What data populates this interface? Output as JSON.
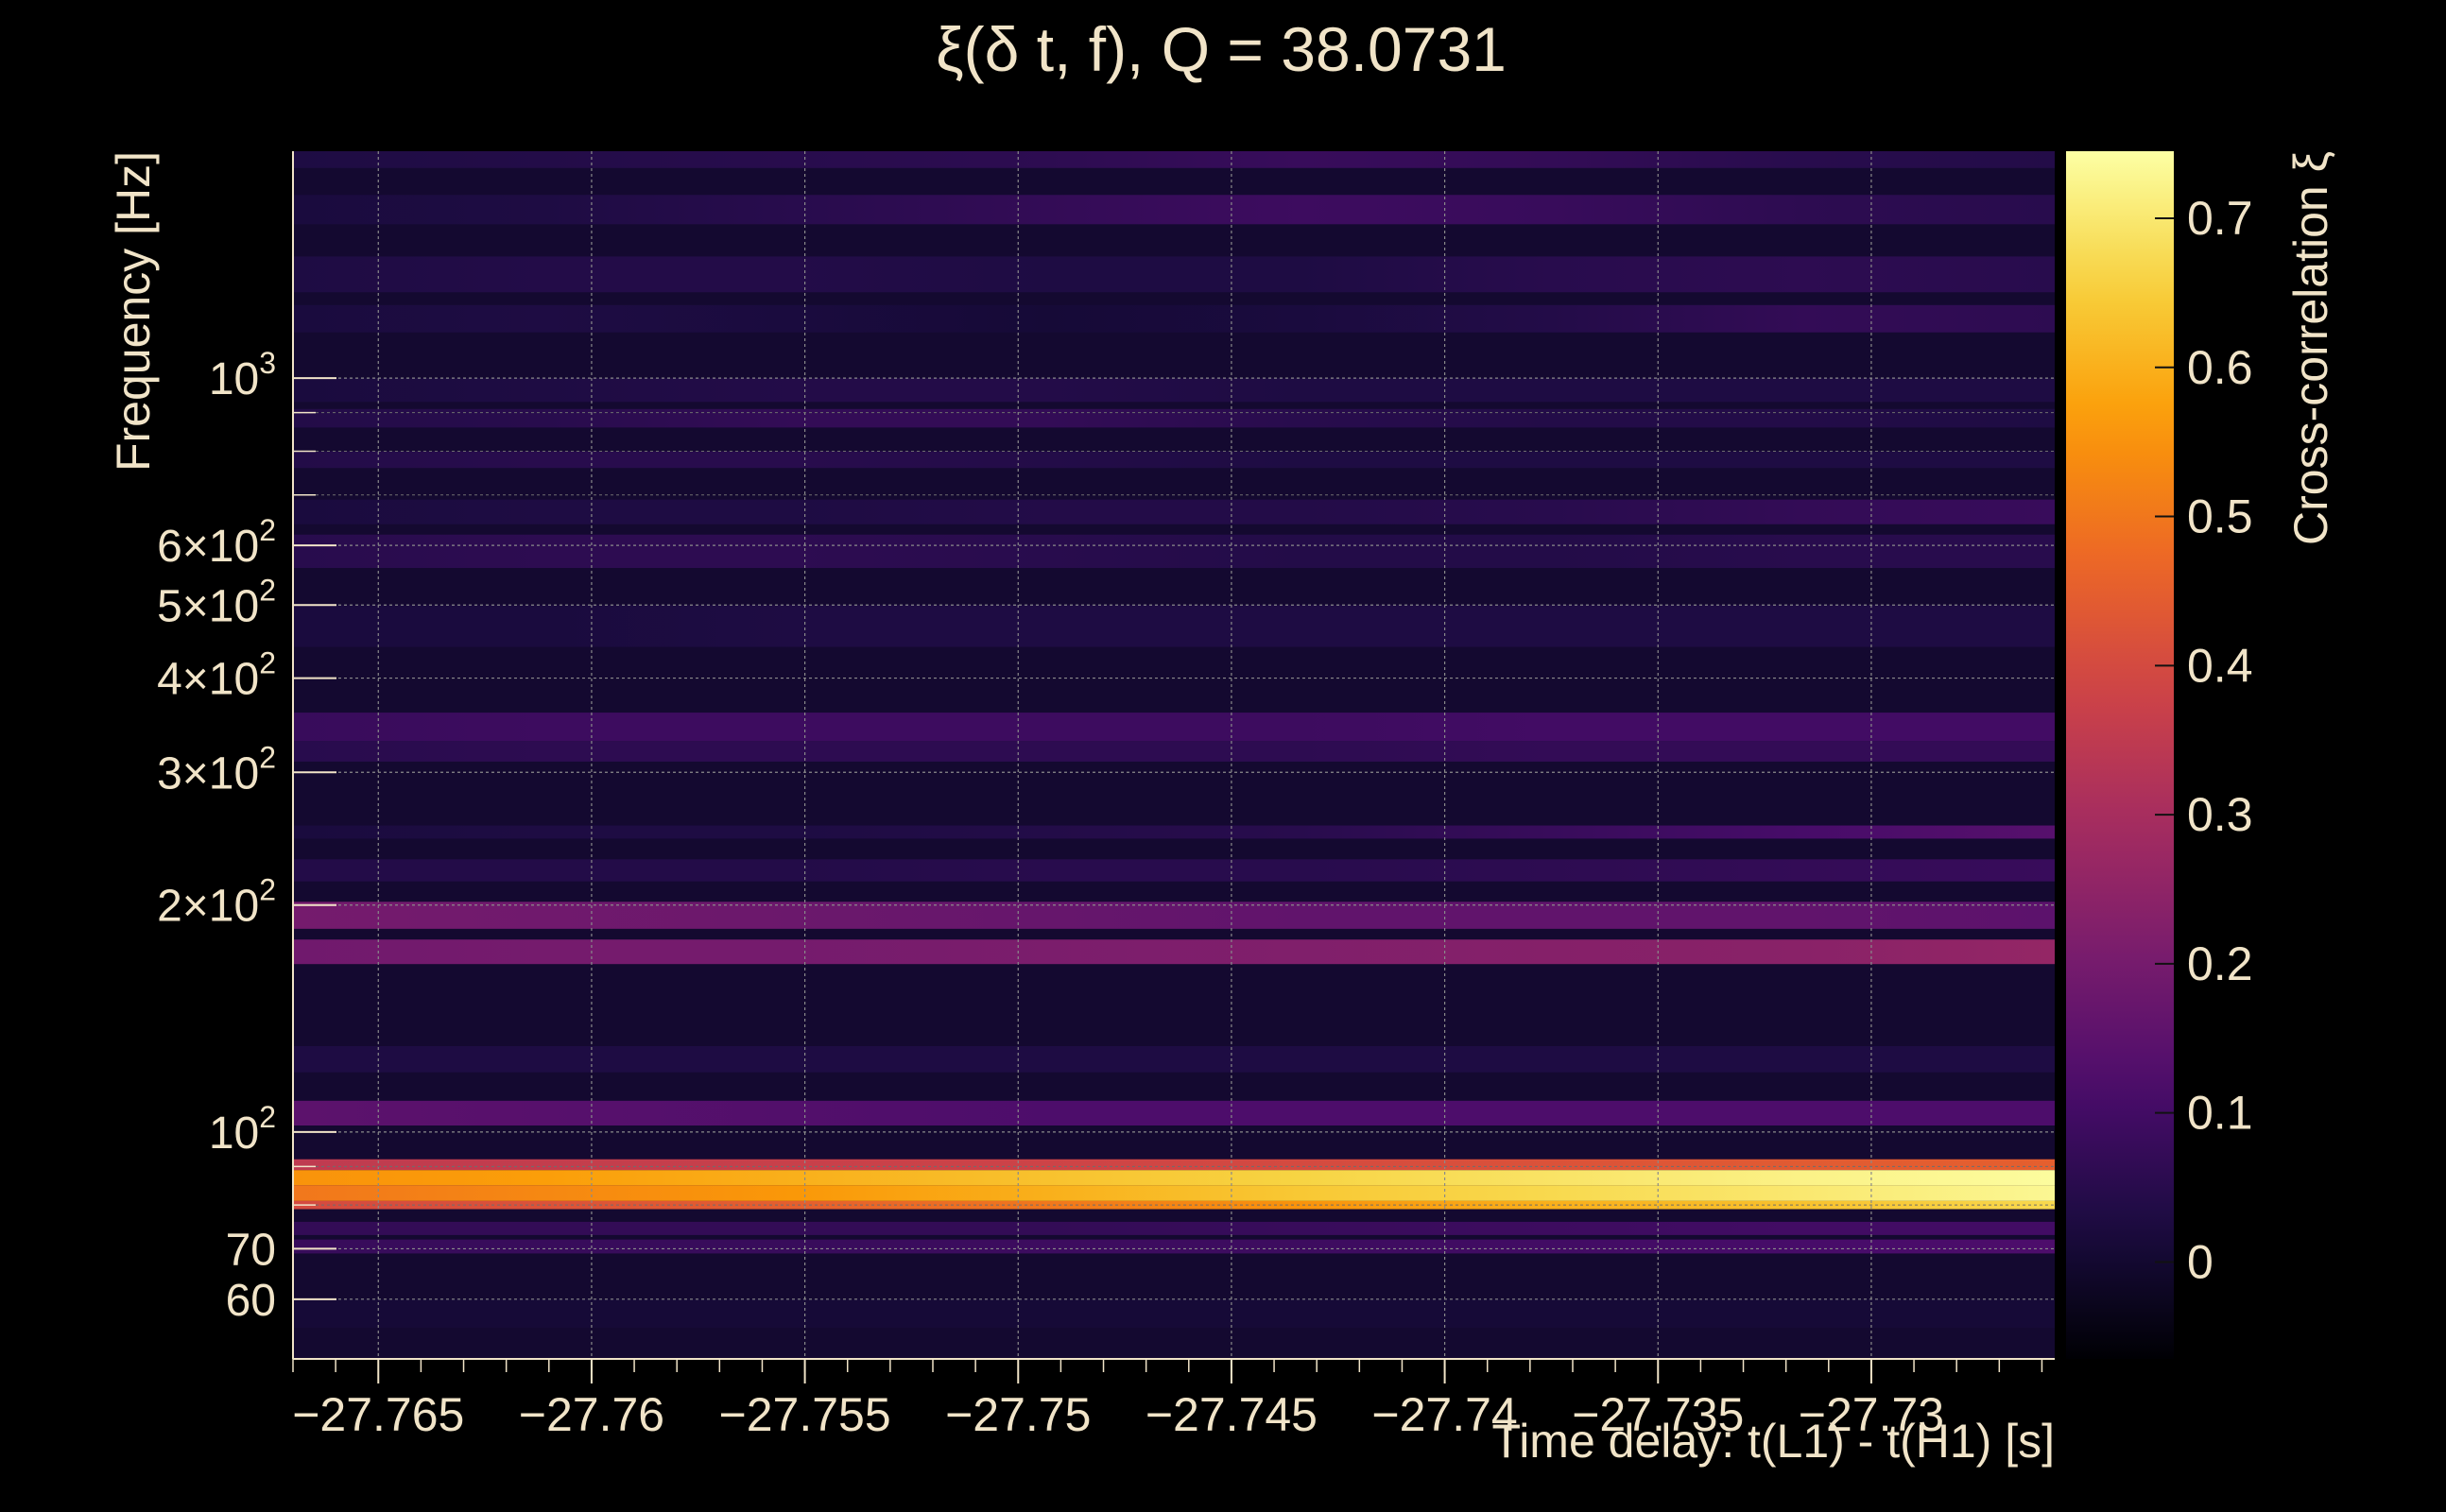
{
  "chart_data": {
    "type": "heatmap",
    "title": "ξ(δ t, f), Q = 38.0731",
    "xlabel": "Time delay: t(L1) - t(H1) [s]",
    "ylabel": "Frequency [Hz]",
    "colorbar_label": "Cross-correlation ξ",
    "x_scale": "linear",
    "y_scale": "log",
    "xlim": [
      -27.767,
      -27.7257
    ],
    "ylim": [
      50,
      2000
    ],
    "grid": true,
    "x_ticks": [
      {
        "v": -27.765,
        "label": "−27.765"
      },
      {
        "v": -27.76,
        "label": "−27.76"
      },
      {
        "v": -27.755,
        "label": "−27.755"
      },
      {
        "v": -27.75,
        "label": "−27.75"
      },
      {
        "v": -27.745,
        "label": "−27.745"
      },
      {
        "v": -27.74,
        "label": "−27.74"
      },
      {
        "v": -27.735,
        "label": "−27.735"
      },
      {
        "v": -27.73,
        "label": "−27.73"
      }
    ],
    "y_ticks": [
      {
        "v": 60,
        "label": "60"
      },
      {
        "v": 70,
        "label": "70"
      },
      {
        "v": 100,
        "base": "10",
        "exp": "2"
      },
      {
        "v": 200,
        "base": "2×10",
        "exp": "2"
      },
      {
        "v": 300,
        "base": "3×10",
        "exp": "2"
      },
      {
        "v": 400,
        "base": "4×10",
        "exp": "2"
      },
      {
        "v": 500,
        "base": "5×10",
        "exp": "2"
      },
      {
        "v": 600,
        "base": "6×10",
        "exp": "2"
      },
      {
        "v": 1000,
        "base": "10",
        "exp": "3"
      }
    ],
    "y_minor_grid": [
      80,
      90,
      700,
      800,
      900
    ],
    "colorbar": {
      "vmin": -0.065,
      "vmax": 0.745,
      "ticks": [
        {
          "v": 0,
          "label": "0"
        },
        {
          "v": 0.1,
          "label": "0.1"
        },
        {
          "v": 0.2,
          "label": "0.2"
        },
        {
          "v": 0.3,
          "label": "0.3"
        },
        {
          "v": 0.4,
          "label": "0.4"
        },
        {
          "v": 0.5,
          "label": "0.5"
        },
        {
          "v": 0.6,
          "label": "0.6"
        },
        {
          "v": 0.7,
          "label": "0.7"
        }
      ],
      "colors": [
        "#000004",
        "#1b0c41",
        "#4a0c6b",
        "#781c6d",
        "#a52c60",
        "#cf4446",
        "#ed6925",
        "#fb9b06",
        "#f7d13d",
        "#fcffa4"
      ],
      "palette": "inferno"
    },
    "bands": [
      {
        "f_low": 1900,
        "f_high": 2000,
        "xi": [
          0.03,
          0.04,
          0.05,
          0.06,
          0.08,
          0.07,
          0.05,
          0.04
        ]
      },
      {
        "f_low": 1600,
        "f_high": 1750,
        "xi": [
          0.02,
          0.03,
          0.05,
          0.07,
          0.09,
          0.08,
          0.06,
          0.05
        ]
      },
      {
        "f_low": 1300,
        "f_high": 1450,
        "xi": [
          0.03,
          0.04,
          0.04,
          0.03,
          0.03,
          0.05,
          0.06,
          0.05
        ]
      },
      {
        "f_low": 1150,
        "f_high": 1250,
        "xi": [
          0.02,
          0.03,
          0.02,
          0.01,
          0.02,
          0.04,
          0.07,
          0.06
        ]
      },
      {
        "f_low": 930,
        "f_high": 1000,
        "xi": [
          0.02,
          0.03,
          0.04,
          0.04,
          0.03,
          0.03,
          0.03,
          0.03
        ]
      },
      {
        "f_low": 860,
        "f_high": 910,
        "xi": [
          0.04,
          0.05,
          0.07,
          0.07,
          0.05,
          0.04,
          0.04,
          0.03
        ]
      },
      {
        "f_low": 760,
        "f_high": 800,
        "xi": [
          0.04,
          0.05,
          0.05,
          0.04,
          0.03,
          0.03,
          0.03,
          0.03
        ]
      },
      {
        "f_low": 640,
        "f_high": 690,
        "xi": [
          0.02,
          0.03,
          0.03,
          0.04,
          0.04,
          0.05,
          0.07,
          0.08
        ]
      },
      {
        "f_low": 560,
        "f_high": 620,
        "xi": [
          0.05,
          0.06,
          0.06,
          0.05,
          0.04,
          0.04,
          0.05,
          0.05
        ]
      },
      {
        "f_low": 440,
        "f_high": 500,
        "xi": [
          0.02,
          0.02,
          0.03,
          0.03,
          0.03,
          0.03,
          0.03,
          0.03
        ]
      },
      {
        "f_low": 330,
        "f_high": 360,
        "xi": [
          0.08,
          0.09,
          0.09,
          0.09,
          0.09,
          0.1,
          0.1,
          0.1
        ]
      },
      {
        "f_low": 310,
        "f_high": 330,
        "xi": [
          0.05,
          0.06,
          0.06,
          0.06,
          0.06,
          0.07,
          0.07,
          0.07
        ]
      },
      {
        "f_low": 245,
        "f_high": 255,
        "xi": [
          0.02,
          0.03,
          0.03,
          0.04,
          0.05,
          0.08,
          0.11,
          0.14
        ]
      },
      {
        "f_low": 215,
        "f_high": 230,
        "xi": [
          0.04,
          0.04,
          0.04,
          0.05,
          0.05,
          0.06,
          0.07,
          0.08
        ]
      },
      {
        "f_low": 186,
        "f_high": 202,
        "xi": [
          0.2,
          0.19,
          0.18,
          0.17,
          0.16,
          0.16,
          0.16,
          0.15
        ]
      },
      {
        "f_low": 167,
        "f_high": 180,
        "xi": [
          0.19,
          0.2,
          0.2,
          0.21,
          0.22,
          0.23,
          0.24,
          0.26
        ]
      },
      {
        "f_low": 120,
        "f_high": 130,
        "xi": [
          0.03,
          0.03,
          0.03,
          0.03,
          0.03,
          0.03,
          0.03,
          0.03
        ]
      },
      {
        "f_low": 102,
        "f_high": 110,
        "xi": [
          0.15,
          0.14,
          0.13,
          0.12,
          0.12,
          0.12,
          0.12,
          0.12
        ]
      },
      {
        "f_low": 89,
        "f_high": 92,
        "xi": [
          0.35,
          0.36,
          0.37,
          0.38,
          0.4,
          0.42,
          0.44,
          0.45
        ]
      },
      {
        "f_low": 85,
        "f_high": 89,
        "xi": [
          0.55,
          0.57,
          0.6,
          0.63,
          0.66,
          0.69,
          0.72,
          0.74
        ]
      },
      {
        "f_low": 81,
        "f_high": 85,
        "xi": [
          0.5,
          0.53,
          0.56,
          0.6,
          0.64,
          0.67,
          0.7,
          0.73
        ]
      },
      {
        "f_low": 79,
        "f_high": 81,
        "xi": [
          0.4,
          0.42,
          0.45,
          0.5,
          0.55,
          0.6,
          0.63,
          0.67
        ]
      },
      {
        "f_low": 73,
        "f_high": 76,
        "xi": [
          0.07,
          0.07,
          0.07,
          0.07,
          0.08,
          0.09,
          0.1,
          0.1
        ]
      },
      {
        "f_low": 69,
        "f_high": 72,
        "xi": [
          0.08,
          0.08,
          0.08,
          0.09,
          0.09,
          0.1,
          0.11,
          0.12
        ]
      },
      {
        "f_low": 55,
        "f_high": 60,
        "xi": [
          0.01,
          0.01,
          0.01,
          0.01,
          0.01,
          0.01,
          0.01,
          0.01
        ]
      }
    ]
  }
}
